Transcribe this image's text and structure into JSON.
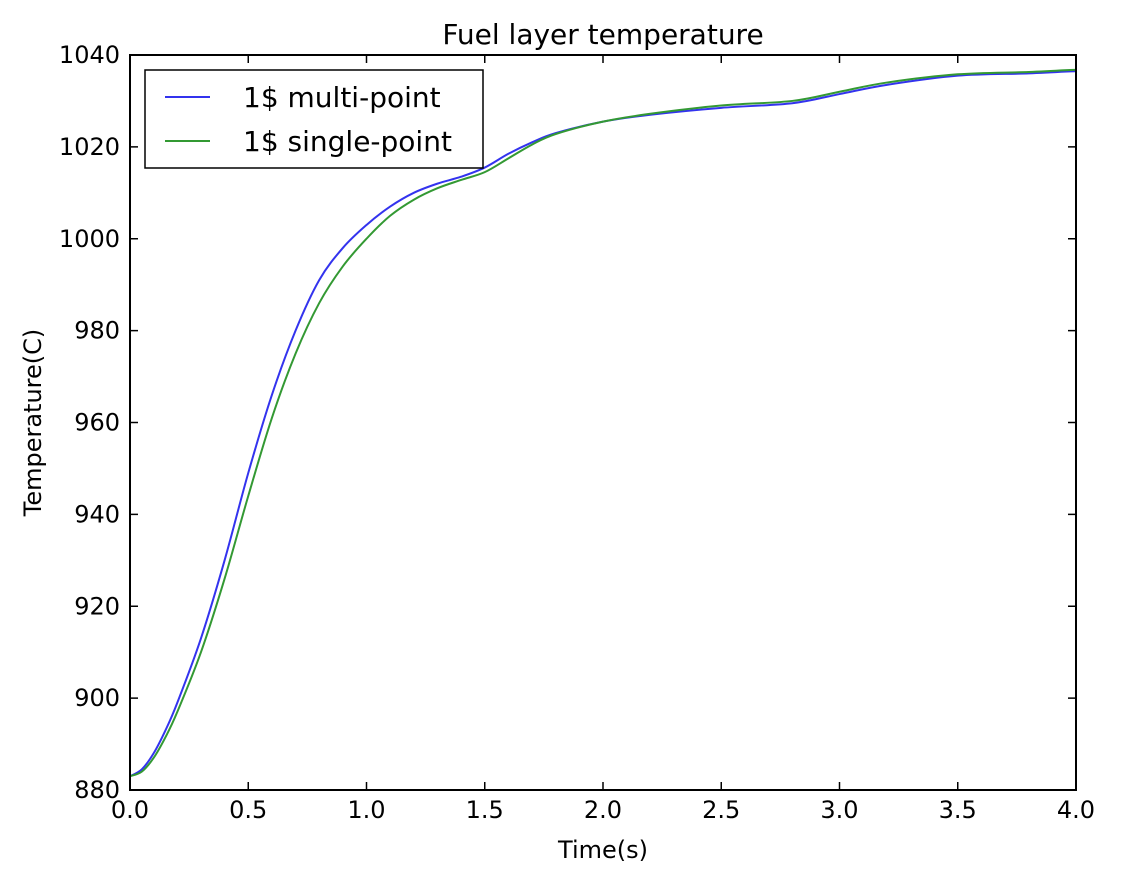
{
  "chart_data": {
    "type": "line",
    "title": "Fuel layer temperature",
    "xlabel": "Time(s)",
    "ylabel": "Temperature(C)",
    "xlim": [
      0.0,
      4.0
    ],
    "ylim": [
      880,
      1040
    ],
    "xticks": [
      "0.0",
      "0.5",
      "1.0",
      "1.5",
      "2.0",
      "2.5",
      "3.0",
      "3.5",
      "4.0"
    ],
    "yticks": [
      "880",
      "900",
      "920",
      "940",
      "960",
      "980",
      "1000",
      "1020",
      "1040"
    ],
    "grid": false,
    "legend_position": "upper-left",
    "series": [
      {
        "name": "1$ multi-point",
        "color": "#3333ee",
        "x": [
          0.0,
          0.05,
          0.1,
          0.15,
          0.2,
          0.3,
          0.4,
          0.5,
          0.6,
          0.7,
          0.8,
          0.9,
          1.0,
          1.1,
          1.2,
          1.3,
          1.4,
          1.5,
          1.6,
          1.7,
          1.8,
          2.0,
          2.2,
          2.5,
          2.8,
          3.0,
          3.2,
          3.5,
          3.8,
          4.0
        ],
        "y": [
          883,
          884.5,
          888,
          893,
          899,
          913,
          930,
          949,
          966,
          980,
          991,
          998,
          1003,
          1007,
          1010,
          1012,
          1013.5,
          1015.5,
          1018.5,
          1021,
          1023,
          1025.5,
          1027,
          1028.5,
          1029.5,
          1031.5,
          1033.5,
          1035.5,
          1036,
          1036.5
        ]
      },
      {
        "name": "1$ single-point",
        "color": "#339933",
        "x": [
          0.0,
          0.05,
          0.1,
          0.15,
          0.2,
          0.3,
          0.4,
          0.5,
          0.6,
          0.7,
          0.8,
          0.9,
          1.0,
          1.1,
          1.2,
          1.3,
          1.4,
          1.5,
          1.6,
          1.7,
          1.8,
          2.0,
          2.2,
          2.5,
          2.8,
          3.0,
          3.2,
          3.5,
          3.8,
          4.0
        ],
        "y": [
          883,
          884,
          887,
          891.5,
          897,
          910,
          926,
          944,
          961,
          975,
          986,
          994,
          1000,
          1005,
          1008.5,
          1011,
          1012.8,
          1014.5,
          1017.5,
          1020.5,
          1022.8,
          1025.5,
          1027.2,
          1029,
          1030,
          1032,
          1034,
          1035.8,
          1036.3,
          1036.8
        ]
      }
    ]
  }
}
